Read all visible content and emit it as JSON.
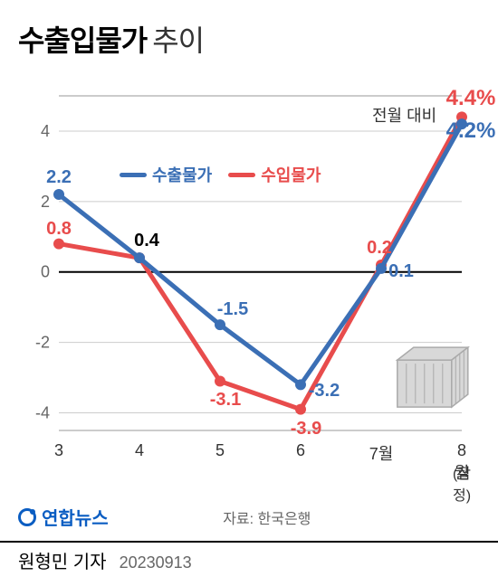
{
  "title": {
    "bold": "수출입물가",
    "light": "추이"
  },
  "subtitle": "전월 대비",
  "legend": {
    "s1": {
      "label": "수출물가",
      "color": "#3b6fb5"
    },
    "s2": {
      "label": "수입물가",
      "color": "#e84c4c"
    }
  },
  "chart": {
    "type": "line",
    "xlabels": [
      "3",
      "4",
      "5",
      "6",
      "7월",
      "8월"
    ],
    "xlabel_sub": "(잠정)",
    "ylim": [
      -4.5,
      5
    ],
    "yticks": [
      -4,
      -2,
      0,
      2,
      4
    ],
    "series1": {
      "name": "수출물가",
      "color": "#3b6fb5",
      "values": [
        2.2,
        0.4,
        -1.5,
        -3.2,
        0.1,
        4.2
      ],
      "labels": [
        "2.2",
        "0.4",
        "-1.5",
        "-3.2",
        "0.1",
        "4.2%"
      ],
      "label_colors": [
        "#3b6fb5",
        "#000000",
        "#3b6fb5",
        "#3b6fb5",
        "#3b6fb5",
        "#3b6fb5"
      ]
    },
    "series2": {
      "name": "수입물가",
      "color": "#e84c4c",
      "values": [
        0.8,
        0.4,
        -3.1,
        -3.9,
        0.2,
        4.4
      ],
      "labels": [
        "0.8",
        "",
        "-3.1",
        "-3.9",
        "0.2",
        "4.4%"
      ],
      "label_colors": [
        "#e84c4c",
        "",
        "#e84c4c",
        "#e84c4c",
        "#e84c4c",
        "#e84c4c"
      ]
    },
    "line_width": 5,
    "marker_radius": 6,
    "background": "#ffffff",
    "grid_color": "#cccccc",
    "zero_line_color": "#000000",
    "border_color": "#999999",
    "axis_fontsize": 18,
    "label_fontsize": 20
  },
  "source": {
    "logo": "연합뉴스",
    "text": "자료: 한국은행"
  },
  "footer": {
    "author": "원형민 기자",
    "date": "20230913"
  },
  "container_fill": "#d8d8d8",
  "container_stroke": "#aaaaaa"
}
